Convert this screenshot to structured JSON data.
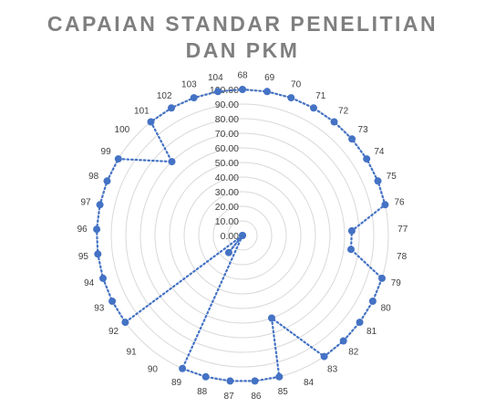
{
  "colors": {
    "series": "#4472c4",
    "title": "#7f7f7f",
    "grid": "#d9d9d9",
    "label": "#404040"
  },
  "chart_data": {
    "type": "radar",
    "title_lines": [
      "CAPAIAN STANDAR PENELITIAN",
      "DAN PKM"
    ],
    "categories": [
      "68",
      "69",
      "70",
      "71",
      "72",
      "73",
      "74",
      "75",
      "76",
      "77",
      "78",
      "79",
      "80",
      "81",
      "82",
      "83",
      "84",
      "85",
      "86",
      "87",
      "88",
      "89",
      "90",
      "91",
      "92",
      "93",
      "94",
      "95",
      "96",
      "97",
      "98",
      "99",
      "100",
      "101",
      "102",
      "103",
      "104"
    ],
    "series": [
      {
        "values": [
          100,
          100,
          100,
          100,
          100,
          100,
          100,
          100,
          100,
          75,
          75,
          100,
          100,
          100,
          100,
          100,
          null,
          100,
          100,
          100,
          100,
          100,
          0,
          0,
          100,
          100,
          100,
          100,
          100,
          100,
          100,
          100,
          null,
          100,
          100,
          100,
          100
        ],
        "extra_points": [
          {
            "after": "84",
            "value": 60
          },
          {
            "after": "100",
            "value": 70
          },
          {
            "after": "90",
            "value": 15
          }
        ]
      }
    ],
    "rlim": [
      0,
      100
    ],
    "r_ticks": [
      "0.00",
      "10.00",
      "20.00",
      "30.00",
      "40.00",
      "50.00",
      "60.00",
      "70.00",
      "80.00",
      "90.00",
      "100.00"
    ],
    "grid": true,
    "legend": "none"
  }
}
